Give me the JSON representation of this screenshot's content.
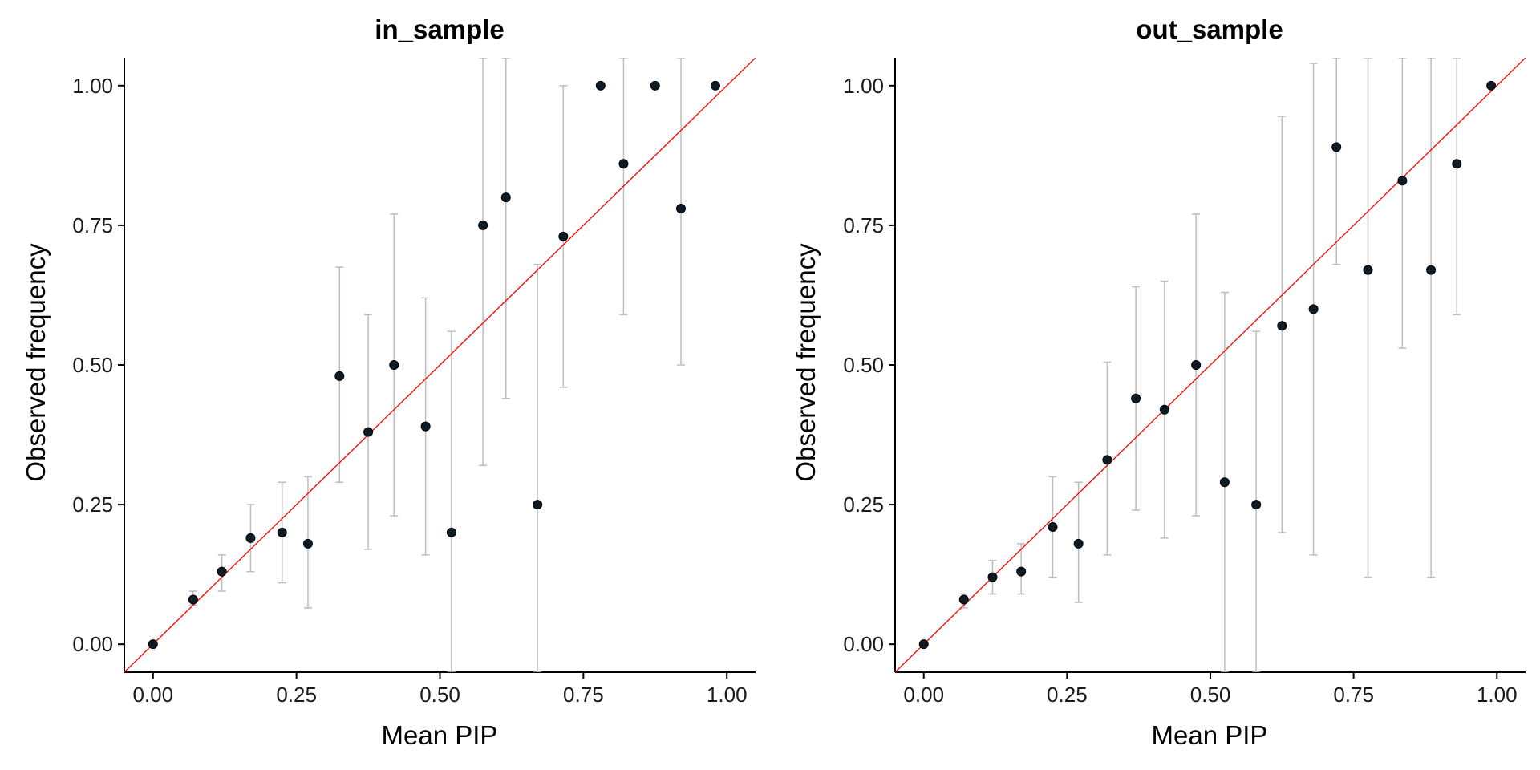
{
  "chart_data": [
    {
      "type": "scatter",
      "title": "in_sample",
      "xlabel": "Mean PIP",
      "ylabel": "Observed frequency",
      "xlim": [
        -0.05,
        1.05
      ],
      "ylim": [
        -0.05,
        1.05
      ],
      "x_ticks": [
        "0.00",
        "0.25",
        "0.50",
        "0.75",
        "1.00"
      ],
      "y_ticks": [
        "0.00",
        "0.25",
        "0.50",
        "0.75",
        "1.00"
      ],
      "reference_line": "y = x",
      "colors": {
        "point": "#0d1b24",
        "errorbar": "#bdbdbd",
        "reference": "#ff0000"
      },
      "points": [
        {
          "x": 0.0,
          "y": 0.0,
          "lo": 0.0,
          "hi": 0.0
        },
        {
          "x": 0.07,
          "y": 0.08,
          "lo": 0.07,
          "hi": 0.095
        },
        {
          "x": 0.12,
          "y": 0.13,
          "lo": 0.095,
          "hi": 0.16
        },
        {
          "x": 0.17,
          "y": 0.19,
          "lo": 0.13,
          "hi": 0.25
        },
        {
          "x": 0.225,
          "y": 0.2,
          "lo": 0.11,
          "hi": 0.29
        },
        {
          "x": 0.27,
          "y": 0.18,
          "lo": 0.065,
          "hi": 0.3
        },
        {
          "x": 0.325,
          "y": 0.48,
          "lo": 0.29,
          "hi": 0.675
        },
        {
          "x": 0.375,
          "y": 0.38,
          "lo": 0.17,
          "hi": 0.59
        },
        {
          "x": 0.42,
          "y": 0.5,
          "lo": 0.23,
          "hi": 0.77
        },
        {
          "x": 0.475,
          "y": 0.39,
          "lo": 0.16,
          "hi": 0.62
        },
        {
          "x": 0.52,
          "y": 0.2,
          "lo": -0.05,
          "hi": 0.56
        },
        {
          "x": 0.575,
          "y": 0.75,
          "lo": 0.32,
          "hi": 1.05
        },
        {
          "x": 0.615,
          "y": 0.8,
          "lo": 0.44,
          "hi": 1.05
        },
        {
          "x": 0.67,
          "y": 0.25,
          "lo": -0.05,
          "hi": 0.68
        },
        {
          "x": 0.715,
          "y": 0.73,
          "lo": 0.46,
          "hi": 1.0
        },
        {
          "x": 0.78,
          "y": 1.0,
          "lo": 1.0,
          "hi": 1.0
        },
        {
          "x": 0.82,
          "y": 0.86,
          "lo": 0.59,
          "hi": 1.05
        },
        {
          "x": 0.875,
          "y": 1.0,
          "lo": 1.0,
          "hi": 1.0
        },
        {
          "x": 0.92,
          "y": 0.78,
          "lo": 0.5,
          "hi": 1.05
        },
        {
          "x": 0.98,
          "y": 1.0,
          "lo": 1.0,
          "hi": 1.0
        }
      ]
    },
    {
      "type": "scatter",
      "title": "out_sample",
      "xlabel": "Mean PIP",
      "ylabel": "Observed frequency",
      "xlim": [
        -0.05,
        1.05
      ],
      "ylim": [
        -0.05,
        1.05
      ],
      "x_ticks": [
        "0.00",
        "0.25",
        "0.50",
        "0.75",
        "1.00"
      ],
      "y_ticks": [
        "0.00",
        "0.25",
        "0.50",
        "0.75",
        "1.00"
      ],
      "reference_line": "y = x",
      "colors": {
        "point": "#0d1b24",
        "errorbar": "#bdbdbd",
        "reference": "#ff0000"
      },
      "points": [
        {
          "x": 0.0,
          "y": 0.0,
          "lo": 0.0,
          "hi": 0.0
        },
        {
          "x": 0.07,
          "y": 0.08,
          "lo": 0.065,
          "hi": 0.09
        },
        {
          "x": 0.12,
          "y": 0.12,
          "lo": 0.09,
          "hi": 0.15
        },
        {
          "x": 0.17,
          "y": 0.13,
          "lo": 0.09,
          "hi": 0.18
        },
        {
          "x": 0.225,
          "y": 0.21,
          "lo": 0.12,
          "hi": 0.3
        },
        {
          "x": 0.27,
          "y": 0.18,
          "lo": 0.075,
          "hi": 0.29
        },
        {
          "x": 0.32,
          "y": 0.33,
          "lo": 0.16,
          "hi": 0.505
        },
        {
          "x": 0.37,
          "y": 0.44,
          "lo": 0.24,
          "hi": 0.64
        },
        {
          "x": 0.42,
          "y": 0.42,
          "lo": 0.19,
          "hi": 0.65
        },
        {
          "x": 0.475,
          "y": 0.5,
          "lo": 0.23,
          "hi": 0.77
        },
        {
          "x": 0.525,
          "y": 0.29,
          "lo": -0.05,
          "hi": 0.63
        },
        {
          "x": 0.58,
          "y": 0.25,
          "lo": -0.05,
          "hi": 0.56
        },
        {
          "x": 0.625,
          "y": 0.57,
          "lo": 0.2,
          "hi": 0.945
        },
        {
          "x": 0.68,
          "y": 0.6,
          "lo": 0.16,
          "hi": 1.04
        },
        {
          "x": 0.72,
          "y": 0.89,
          "lo": 0.68,
          "hi": 1.05
        },
        {
          "x": 0.775,
          "y": 0.67,
          "lo": 0.12,
          "hi": 1.05
        },
        {
          "x": 0.835,
          "y": 0.83,
          "lo": 0.53,
          "hi": 1.05
        },
        {
          "x": 0.885,
          "y": 0.67,
          "lo": 0.12,
          "hi": 1.05
        },
        {
          "x": 0.93,
          "y": 0.86,
          "lo": 0.59,
          "hi": 1.05
        },
        {
          "x": 0.99,
          "y": 1.0,
          "lo": 1.0,
          "hi": 1.0
        }
      ]
    }
  ]
}
